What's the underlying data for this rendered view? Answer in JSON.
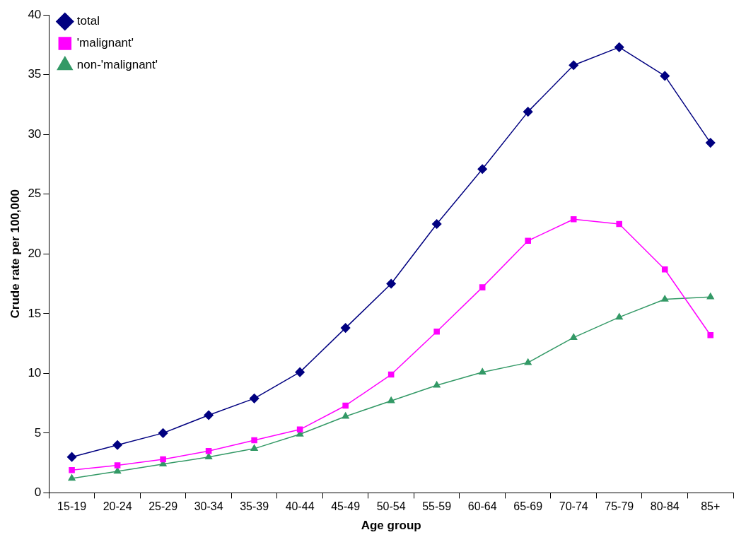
{
  "chart_data": {
    "type": "line",
    "xlabel": "Age group",
    "ylabel": "Crude rate per 100,000",
    "categories": [
      "15-19",
      "20-24",
      "25-29",
      "30-34",
      "35-39",
      "40-44",
      "45-49",
      "50-54",
      "55-59",
      "60-64",
      "65-69",
      "70-74",
      "75-79",
      "80-84",
      "85+"
    ],
    "series": [
      {
        "name": "total",
        "color": "#000080",
        "marker": "diamond",
        "values": [
          3.0,
          4.0,
          5.0,
          6.5,
          7.9,
          10.1,
          13.8,
          17.5,
          22.5,
          27.1,
          31.9,
          35.8,
          37.3,
          34.9,
          29.3
        ]
      },
      {
        "name": "'malignant'",
        "color": "#ff00ff",
        "marker": "square",
        "values": [
          1.9,
          2.3,
          2.8,
          3.5,
          4.4,
          5.3,
          7.3,
          9.9,
          13.5,
          17.2,
          21.1,
          22.9,
          22.5,
          18.7,
          13.2
        ]
      },
      {
        "name": "non-'malignant'",
        "color": "#339966",
        "marker": "triangle",
        "values": [
          1.2,
          1.8,
          2.4,
          3.0,
          3.7,
          4.9,
          6.4,
          7.7,
          9.0,
          10.1,
          10.9,
          13.0,
          14.7,
          16.2,
          16.4
        ]
      }
    ],
    "ylim": [
      0,
      40
    ],
    "yticks": [
      0,
      5,
      10,
      15,
      20,
      25,
      30,
      35,
      40
    ],
    "grid": false,
    "legend": "top left",
    "line_style": "solid"
  }
}
